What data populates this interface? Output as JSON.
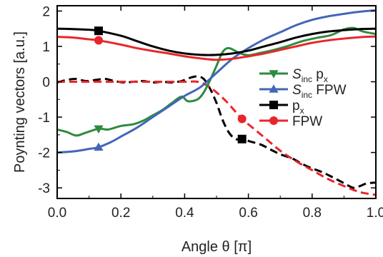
{
  "chart_data": {
    "type": "line",
    "xlabel": "Angle θ [π]",
    "ylabel": "Poynting vectors [a.u.]",
    "xlim": [
      0,
      1
    ],
    "ylim": [
      -3.3,
      2.15
    ],
    "xticks": [
      0.0,
      0.2,
      0.4,
      0.6,
      0.8,
      1.0
    ],
    "xtick_labels": [
      "0.0",
      "0.2",
      "0.4",
      "0.6",
      "0.8",
      "1.0"
    ],
    "yticks": [
      -3,
      -2,
      -1,
      0,
      1,
      2
    ],
    "ytick_labels": [
      "-3",
      "-2",
      "-1",
      "0",
      "1",
      "2"
    ],
    "grid": false,
    "legend_position": "right-middle",
    "series": [
      {
        "name": "S_inc p_x",
        "legend_main": "S",
        "legend_sub": "inc",
        "legend_rest": " p",
        "legend_sub2": "x",
        "color": "#2e8b3e",
        "style": "solid",
        "marker": "triangle-down",
        "marker_x": 0.13,
        "points": [
          [
            0.0,
            -1.35
          ],
          [
            0.03,
            -1.42
          ],
          [
            0.06,
            -1.52
          ],
          [
            0.09,
            -1.44
          ],
          [
            0.13,
            -1.33
          ],
          [
            0.16,
            -1.35
          ],
          [
            0.2,
            -1.25
          ],
          [
            0.24,
            -1.2
          ],
          [
            0.27,
            -1.1
          ],
          [
            0.3,
            -0.95
          ],
          [
            0.33,
            -0.8
          ],
          [
            0.36,
            -0.6
          ],
          [
            0.39,
            -0.42
          ],
          [
            0.41,
            -0.55
          ],
          [
            0.44,
            -0.5
          ],
          [
            0.46,
            -0.3
          ],
          [
            0.48,
            0.05
          ],
          [
            0.5,
            0.45
          ],
          [
            0.52,
            0.85
          ],
          [
            0.54,
            0.95
          ],
          [
            0.57,
            0.82
          ],
          [
            0.6,
            0.75
          ],
          [
            0.64,
            0.82
          ],
          [
            0.68,
            0.9
          ],
          [
            0.72,
            1.0
          ],
          [
            0.77,
            1.15
          ],
          [
            0.82,
            1.25
          ],
          [
            0.86,
            1.32
          ],
          [
            0.9,
            1.48
          ],
          [
            0.93,
            1.52
          ],
          [
            0.96,
            1.42
          ],
          [
            1.0,
            1.35
          ]
        ]
      },
      {
        "name": "S_inc FPW",
        "legend_main": "S",
        "legend_sub": "inc",
        "legend_rest": " FPW",
        "legend_sub2": "",
        "color": "#4466b8",
        "style": "solid",
        "marker": "triangle-up",
        "marker_x": 0.13,
        "points": [
          [
            0.0,
            -2.0
          ],
          [
            0.05,
            -1.97
          ],
          [
            0.1,
            -1.9
          ],
          [
            0.13,
            -1.85
          ],
          [
            0.17,
            -1.7
          ],
          [
            0.2,
            -1.55
          ],
          [
            0.25,
            -1.3
          ],
          [
            0.3,
            -1.0
          ],
          [
            0.35,
            -0.7
          ],
          [
            0.4,
            -0.4
          ],
          [
            0.45,
            -0.15
          ],
          [
            0.5,
            0.25
          ],
          [
            0.55,
            0.65
          ],
          [
            0.6,
            0.95
          ],
          [
            0.65,
            1.2
          ],
          [
            0.7,
            1.4
          ],
          [
            0.75,
            1.6
          ],
          [
            0.8,
            1.75
          ],
          [
            0.85,
            1.85
          ],
          [
            0.9,
            1.92
          ],
          [
            0.95,
            1.98
          ],
          [
            1.0,
            2.02
          ]
        ]
      },
      {
        "name": "p_x",
        "legend_main": "p",
        "legend_sub": "x",
        "legend_rest": "",
        "legend_sub2": "",
        "color": "#000000",
        "style": "solid",
        "marker": "square",
        "marker_x": 0.13,
        "points": [
          [
            0.0,
            1.5
          ],
          [
            0.05,
            1.49
          ],
          [
            0.1,
            1.47
          ],
          [
            0.13,
            1.44
          ],
          [
            0.2,
            1.3
          ],
          [
            0.25,
            1.15
          ],
          [
            0.3,
            1.0
          ],
          [
            0.35,
            0.88
          ],
          [
            0.4,
            0.8
          ],
          [
            0.45,
            0.76
          ],
          [
            0.5,
            0.76
          ],
          [
            0.55,
            0.8
          ],
          [
            0.6,
            0.88
          ],
          [
            0.65,
            1.0
          ],
          [
            0.7,
            1.12
          ],
          [
            0.75,
            1.25
          ],
          [
            0.8,
            1.35
          ],
          [
            0.85,
            1.42
          ],
          [
            0.9,
            1.46
          ],
          [
            0.95,
            1.49
          ],
          [
            1.0,
            1.5
          ]
        ]
      },
      {
        "name": "p_x",
        "legend_main": "",
        "color": "#000000",
        "style": "dashed",
        "marker": "square",
        "marker_x": 0.58,
        "points": [
          [
            0.0,
            -0.02
          ],
          [
            0.03,
            0.05
          ],
          [
            0.06,
            0.08
          ],
          [
            0.09,
            0.02
          ],
          [
            0.12,
            0.05
          ],
          [
            0.15,
            0.08
          ],
          [
            0.18,
            0.02
          ],
          [
            0.21,
            -0.02
          ],
          [
            0.24,
            0.0
          ],
          [
            0.27,
            0.02
          ],
          [
            0.3,
            -0.02
          ],
          [
            0.33,
            0.0
          ],
          [
            0.36,
            -0.02
          ],
          [
            0.39,
            0.02
          ],
          [
            0.42,
            0.12
          ],
          [
            0.44,
            0.15
          ],
          [
            0.46,
            0.08
          ],
          [
            0.48,
            -0.2
          ],
          [
            0.5,
            -0.6
          ],
          [
            0.52,
            -1.1
          ],
          [
            0.54,
            -1.45
          ],
          [
            0.56,
            -1.62
          ],
          [
            0.58,
            -1.62
          ],
          [
            0.61,
            -1.7
          ],
          [
            0.64,
            -1.78
          ],
          [
            0.67,
            -1.92
          ],
          [
            0.7,
            -2.05
          ],
          [
            0.74,
            -2.18
          ],
          [
            0.77,
            -2.33
          ],
          [
            0.8,
            -2.45
          ],
          [
            0.83,
            -2.55
          ],
          [
            0.86,
            -2.68
          ],
          [
            0.89,
            -2.82
          ],
          [
            0.91,
            -2.92
          ],
          [
            0.93,
            -3.0
          ],
          [
            0.95,
            -2.95
          ],
          [
            0.97,
            -2.88
          ],
          [
            1.0,
            -2.85
          ]
        ]
      },
      {
        "name": "FPW",
        "legend_main": "FPW",
        "legend_sub": "",
        "legend_rest": "",
        "legend_sub2": "",
        "color": "#e8262a",
        "style": "solid",
        "marker": "circle",
        "marker_x": 0.13,
        "points": [
          [
            0.0,
            1.27
          ],
          [
            0.05,
            1.25
          ],
          [
            0.1,
            1.2
          ],
          [
            0.13,
            1.17
          ],
          [
            0.2,
            1.05
          ],
          [
            0.25,
            0.95
          ],
          [
            0.3,
            0.87
          ],
          [
            0.35,
            0.8
          ],
          [
            0.4,
            0.72
          ],
          [
            0.45,
            0.66
          ],
          [
            0.5,
            0.62
          ],
          [
            0.55,
            0.65
          ],
          [
            0.6,
            0.72
          ],
          [
            0.65,
            0.8
          ],
          [
            0.7,
            0.9
          ],
          [
            0.75,
            1.0
          ],
          [
            0.8,
            1.1
          ],
          [
            0.85,
            1.17
          ],
          [
            0.9,
            1.22
          ],
          [
            0.95,
            1.26
          ],
          [
            1.0,
            1.28
          ]
        ]
      },
      {
        "name": "FPW",
        "legend_main": "",
        "color": "#e8262a",
        "style": "dashed",
        "marker": "circle",
        "marker_x": 0.58,
        "points": [
          [
            0.0,
            0.0
          ],
          [
            0.1,
            0.0
          ],
          [
            0.2,
            0.0
          ],
          [
            0.3,
            0.0
          ],
          [
            0.4,
            0.0
          ],
          [
            0.44,
            0.0
          ],
          [
            0.47,
            -0.1
          ],
          [
            0.5,
            -0.3
          ],
          [
            0.53,
            -0.55
          ],
          [
            0.56,
            -0.85
          ],
          [
            0.58,
            -1.05
          ],
          [
            0.62,
            -1.35
          ],
          [
            0.66,
            -1.65
          ],
          [
            0.7,
            -1.95
          ],
          [
            0.75,
            -2.25
          ],
          [
            0.8,
            -2.5
          ],
          [
            0.85,
            -2.75
          ],
          [
            0.9,
            -2.95
          ],
          [
            0.95,
            -3.12
          ],
          [
            1.0,
            -3.2
          ]
        ]
      }
    ]
  }
}
